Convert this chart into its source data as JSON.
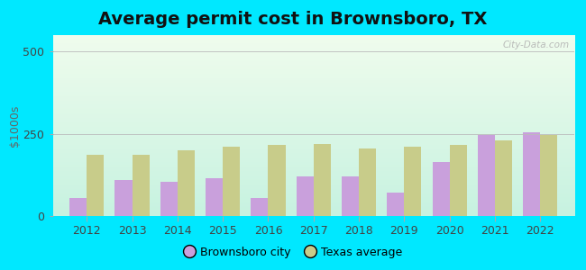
{
  "title": "Average permit cost in Brownsboro, TX",
  "ylabel": "$1000s",
  "years": [
    2012,
    2013,
    2014,
    2015,
    2016,
    2017,
    2018,
    2019,
    2020,
    2021,
    2022
  ],
  "brownsboro": [
    55,
    110,
    105,
    115,
    55,
    120,
    120,
    70,
    165,
    245,
    255
  ],
  "texas_avg": [
    185,
    185,
    200,
    210,
    215,
    220,
    205,
    210,
    215,
    230,
    245
  ],
  "brownsboro_color": "#c9a0dc",
  "texas_color": "#c8cc8a",
  "ylim": [
    0,
    550
  ],
  "yticks": [
    0,
    250,
    500
  ],
  "background_outer": "#00e8ff",
  "legend_brownsboro": "Brownsboro city",
  "legend_texas": "Texas average",
  "bar_width": 0.38,
  "title_fontsize": 14,
  "axis_fontsize": 9,
  "watermark": "City-Data.com"
}
